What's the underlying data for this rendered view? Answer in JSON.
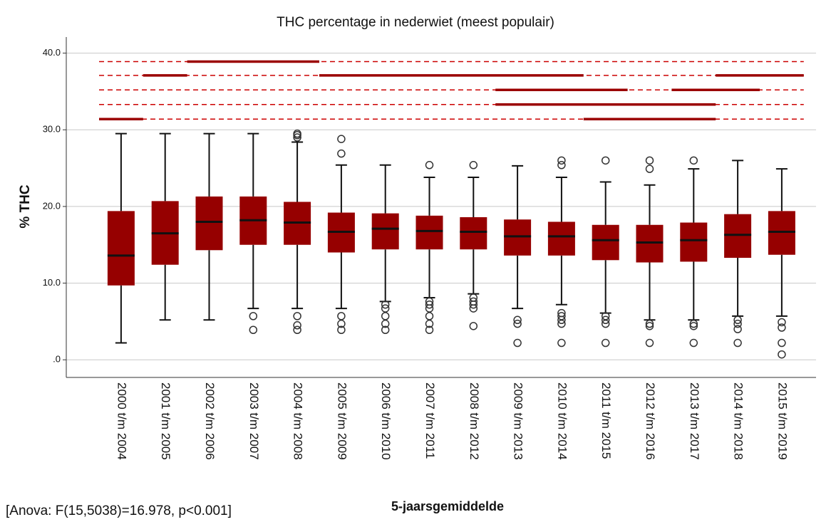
{
  "chart_data": {
    "type": "box",
    "title": "THC percentage in nederwiet (meest populair)",
    "y_label": "% THC",
    "x_label": "5-jaarsgemiddelde",
    "annotation": "[Anova: F(15,5038)=16.978, p<0.001]",
    "color": "#960000",
    "ylim": [
      -2.3,
      42.1
    ],
    "yticks": [
      {
        "value": 0,
        "label": ".0"
      },
      {
        "value": 10,
        "label": "10.0"
      },
      {
        "value": 20,
        "label": "20.0"
      },
      {
        "value": 30,
        "label": "30.0"
      },
      {
        "value": 40,
        "label": "40.0"
      }
    ],
    "grid": true,
    "categories": [
      "2000 t/m 2004",
      "2001 t/m 2005",
      "2002 t/m 2006",
      "2003 t/m 2007",
      "2004 t/m 2008",
      "2005 t/m 2009",
      "2006 t/m 2010",
      "2007 t/m 2011",
      "2008 t/m 2012",
      "2009 t/m 2013",
      "2010 t/m 2014",
      "2011 t/m 2015",
      "2012 t/m 2016",
      "2013 t/m 2017",
      "2014 t/m 2018",
      "2015 t/m 2019"
    ],
    "boxes": [
      {
        "low": 2.2,
        "q1": 9.7,
        "median": 13.6,
        "q3": 19.4,
        "high": 29.5,
        "outliers": []
      },
      {
        "low": 5.2,
        "q1": 12.4,
        "median": 16.5,
        "q3": 20.7,
        "high": 29.5,
        "outliers": []
      },
      {
        "low": 5.2,
        "q1": 14.3,
        "median": 18.0,
        "q3": 21.3,
        "high": 29.5,
        "outliers": []
      },
      {
        "low": 6.7,
        "q1": 15.0,
        "median": 18.2,
        "q3": 21.3,
        "high": 29.5,
        "outliers": [
          5.7,
          3.9
        ]
      },
      {
        "low": 6.7,
        "q1": 15.0,
        "median": 17.9,
        "q3": 20.6,
        "high": 28.4,
        "outliers": [
          29.5,
          29.3,
          29.0,
          5.7,
          4.5,
          3.9
        ]
      },
      {
        "low": 6.7,
        "q1": 14.0,
        "median": 16.7,
        "q3": 19.2,
        "high": 25.4,
        "outliers": [
          28.8,
          26.9,
          5.7,
          4.7,
          3.9
        ]
      },
      {
        "low": 7.6,
        "q1": 14.4,
        "median": 17.1,
        "q3": 19.1,
        "high": 25.4,
        "outliers": [
          7.2,
          6.7,
          5.7,
          4.7,
          3.9
        ]
      },
      {
        "low": 8.1,
        "q1": 14.4,
        "median": 16.8,
        "q3": 18.8,
        "high": 23.8,
        "outliers": [
          25.4,
          7.6,
          7.2,
          6.7,
          5.7,
          4.7,
          3.9
        ]
      },
      {
        "low": 8.6,
        "q1": 14.4,
        "median": 16.7,
        "q3": 18.6,
        "high": 23.8,
        "outliers": [
          25.4,
          8.1,
          7.6,
          7.2,
          6.7,
          4.4
        ]
      },
      {
        "low": 6.7,
        "q1": 13.6,
        "median": 16.1,
        "q3": 18.3,
        "high": 25.3,
        "outliers": [
          5.2,
          4.7,
          2.2
        ]
      },
      {
        "low": 7.2,
        "q1": 13.6,
        "median": 16.1,
        "q3": 18.0,
        "high": 23.8,
        "outliers": [
          26.0,
          25.4,
          6.1,
          5.7,
          5.2,
          4.7,
          2.2
        ]
      },
      {
        "low": 6.1,
        "q1": 13.0,
        "median": 15.6,
        "q3": 17.6,
        "high": 23.2,
        "outliers": [
          26.0,
          5.7,
          5.2,
          4.7,
          2.2
        ]
      },
      {
        "low": 5.2,
        "q1": 12.7,
        "median": 15.3,
        "q3": 17.6,
        "high": 22.8,
        "outliers": [
          26.0,
          24.9,
          4.7,
          4.4,
          2.2
        ]
      },
      {
        "low": 5.2,
        "q1": 12.8,
        "median": 15.6,
        "q3": 17.9,
        "high": 24.9,
        "outliers": [
          26.0,
          4.7,
          4.4,
          2.2
        ]
      },
      {
        "low": 5.7,
        "q1": 13.3,
        "median": 16.3,
        "q3": 19.0,
        "high": 26.0,
        "outliers": [
          5.2,
          4.7,
          4.0,
          2.2
        ]
      },
      {
        "low": 5.7,
        "q1": 13.7,
        "median": 16.7,
        "q3": 19.4,
        "high": 24.9,
        "outliers": [
          4.9,
          4.2,
          2.2,
          0.7
        ]
      }
    ],
    "subsets": [
      {
        "y": 38.9,
        "groups": [
          [
            2,
            4
          ]
        ]
      },
      {
        "y": 37.1,
        "groups": [
          [
            1,
            1
          ],
          [
            5,
            10
          ],
          [
            14,
            15
          ]
        ]
      },
      {
        "y": 35.2,
        "groups": [
          [
            9,
            11
          ],
          [
            13,
            14
          ]
        ]
      },
      {
        "y": 33.3,
        "groups": [
          [
            9,
            13
          ]
        ]
      },
      {
        "y": 31.4,
        "groups": [
          [
            0,
            0
          ],
          [
            11,
            13
          ]
        ]
      }
    ]
  }
}
